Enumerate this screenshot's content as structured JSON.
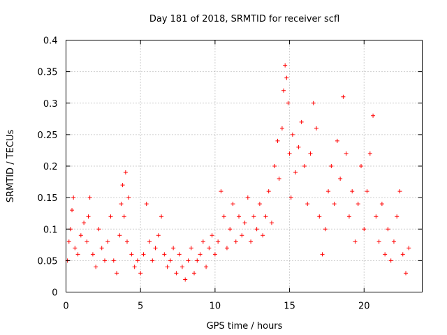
{
  "chart_data": {
    "type": "scatter",
    "title": "Day 181 of 2018, SRMTID for receiver scfl",
    "xlabel": "GPS time / hours",
    "ylabel": "SRMTID / TECUs",
    "xlim": [
      0,
      23.9
    ],
    "ylim": [
      0,
      0.4
    ],
    "x_ticks": [
      0,
      5,
      10,
      15,
      20
    ],
    "x_tick_labels": [
      "0",
      "5",
      "10",
      "15",
      "20"
    ],
    "y_ticks": [
      0,
      0.05,
      0.1,
      0.15,
      0.2,
      0.25,
      0.3,
      0.35,
      0.4
    ],
    "y_tick_labels": [
      "0",
      "0.05",
      "0.1",
      "0.15",
      "0.2",
      "0.25",
      "0.3",
      "0.35",
      "0.4"
    ],
    "grid": true,
    "marker": "+",
    "color": "#ff0000",
    "series": [
      {
        "name": "SRMTID",
        "points": [
          [
            0.1,
            0.05
          ],
          [
            0.2,
            0.08
          ],
          [
            0.3,
            0.1
          ],
          [
            0.4,
            0.13
          ],
          [
            0.5,
            0.15
          ],
          [
            0.6,
            0.07
          ],
          [
            0.8,
            0.06
          ],
          [
            1.0,
            0.09
          ],
          [
            1.2,
            0.11
          ],
          [
            1.4,
            0.08
          ],
          [
            1.5,
            0.12
          ],
          [
            1.6,
            0.15
          ],
          [
            1.8,
            0.06
          ],
          [
            2.0,
            0.04
          ],
          [
            2.2,
            0.1
          ],
          [
            2.4,
            0.07
          ],
          [
            2.6,
            0.05
          ],
          [
            2.8,
            0.08
          ],
          [
            3.0,
            0.12
          ],
          [
            3.2,
            0.05
          ],
          [
            3.4,
            0.03
          ],
          [
            3.6,
            0.09
          ],
          [
            3.7,
            0.14
          ],
          [
            3.8,
            0.17
          ],
          [
            3.9,
            0.12
          ],
          [
            4.0,
            0.19
          ],
          [
            4.1,
            0.08
          ],
          [
            4.2,
            0.15
          ],
          [
            4.4,
            0.06
          ],
          [
            4.6,
            0.04
          ],
          [
            4.8,
            0.05
          ],
          [
            5.0,
            0.03
          ],
          [
            5.2,
            0.06
          ],
          [
            5.4,
            0.14
          ],
          [
            5.6,
            0.08
          ],
          [
            5.8,
            0.05
          ],
          [
            6.0,
            0.07
          ],
          [
            6.2,
            0.09
          ],
          [
            6.4,
            0.12
          ],
          [
            6.6,
            0.06
          ],
          [
            6.8,
            0.04
          ],
          [
            7.0,
            0.05
          ],
          [
            7.2,
            0.07
          ],
          [
            7.4,
            0.03
          ],
          [
            7.6,
            0.06
          ],
          [
            7.8,
            0.04
          ],
          [
            8.0,
            0.02
          ],
          [
            8.2,
            0.05
          ],
          [
            8.4,
            0.07
          ],
          [
            8.6,
            0.03
          ],
          [
            8.8,
            0.05
          ],
          [
            9.0,
            0.06
          ],
          [
            9.2,
            0.08
          ],
          [
            9.4,
            0.04
          ],
          [
            9.6,
            0.07
          ],
          [
            9.8,
            0.09
          ],
          [
            10.0,
            0.06
          ],
          [
            10.2,
            0.08
          ],
          [
            10.4,
            0.16
          ],
          [
            10.6,
            0.12
          ],
          [
            10.8,
            0.07
          ],
          [
            11.0,
            0.1
          ],
          [
            11.2,
            0.14
          ],
          [
            11.4,
            0.08
          ],
          [
            11.6,
            0.12
          ],
          [
            11.8,
            0.09
          ],
          [
            12.0,
            0.11
          ],
          [
            12.2,
            0.15
          ],
          [
            12.4,
            0.08
          ],
          [
            12.6,
            0.12
          ],
          [
            12.8,
            0.1
          ],
          [
            13.0,
            0.14
          ],
          [
            13.2,
            0.09
          ],
          [
            13.4,
            0.12
          ],
          [
            13.6,
            0.16
          ],
          [
            13.8,
            0.11
          ],
          [
            14.0,
            0.2
          ],
          [
            14.2,
            0.24
          ],
          [
            14.3,
            0.18
          ],
          [
            14.5,
            0.26
          ],
          [
            14.6,
            0.32
          ],
          [
            14.7,
            0.36
          ],
          [
            14.8,
            0.34
          ],
          [
            14.9,
            0.3
          ],
          [
            15.0,
            0.22
          ],
          [
            15.1,
            0.15
          ],
          [
            15.2,
            0.25
          ],
          [
            15.4,
            0.19
          ],
          [
            15.6,
            0.23
          ],
          [
            15.8,
            0.27
          ],
          [
            16.0,
            0.2
          ],
          [
            16.2,
            0.14
          ],
          [
            16.4,
            0.22
          ],
          [
            16.6,
            0.3
          ],
          [
            16.8,
            0.26
          ],
          [
            17.0,
            0.12
          ],
          [
            17.2,
            0.06
          ],
          [
            17.4,
            0.1
          ],
          [
            17.6,
            0.16
          ],
          [
            17.8,
            0.2
          ],
          [
            18.0,
            0.14
          ],
          [
            18.2,
            0.24
          ],
          [
            18.4,
            0.18
          ],
          [
            18.6,
            0.31
          ],
          [
            18.8,
            0.22
          ],
          [
            19.0,
            0.12
          ],
          [
            19.2,
            0.16
          ],
          [
            19.4,
            0.08
          ],
          [
            19.6,
            0.14
          ],
          [
            19.8,
            0.2
          ],
          [
            20.0,
            0.1
          ],
          [
            20.2,
            0.16
          ],
          [
            20.4,
            0.22
          ],
          [
            20.6,
            0.28
          ],
          [
            20.8,
            0.12
          ],
          [
            21.0,
            0.08
          ],
          [
            21.2,
            0.14
          ],
          [
            21.4,
            0.06
          ],
          [
            21.6,
            0.1
          ],
          [
            21.8,
            0.05
          ],
          [
            22.0,
            0.08
          ],
          [
            22.2,
            0.12
          ],
          [
            22.4,
            0.16
          ],
          [
            22.6,
            0.06
          ],
          [
            22.8,
            0.03
          ],
          [
            23.0,
            0.07
          ]
        ]
      }
    ]
  }
}
